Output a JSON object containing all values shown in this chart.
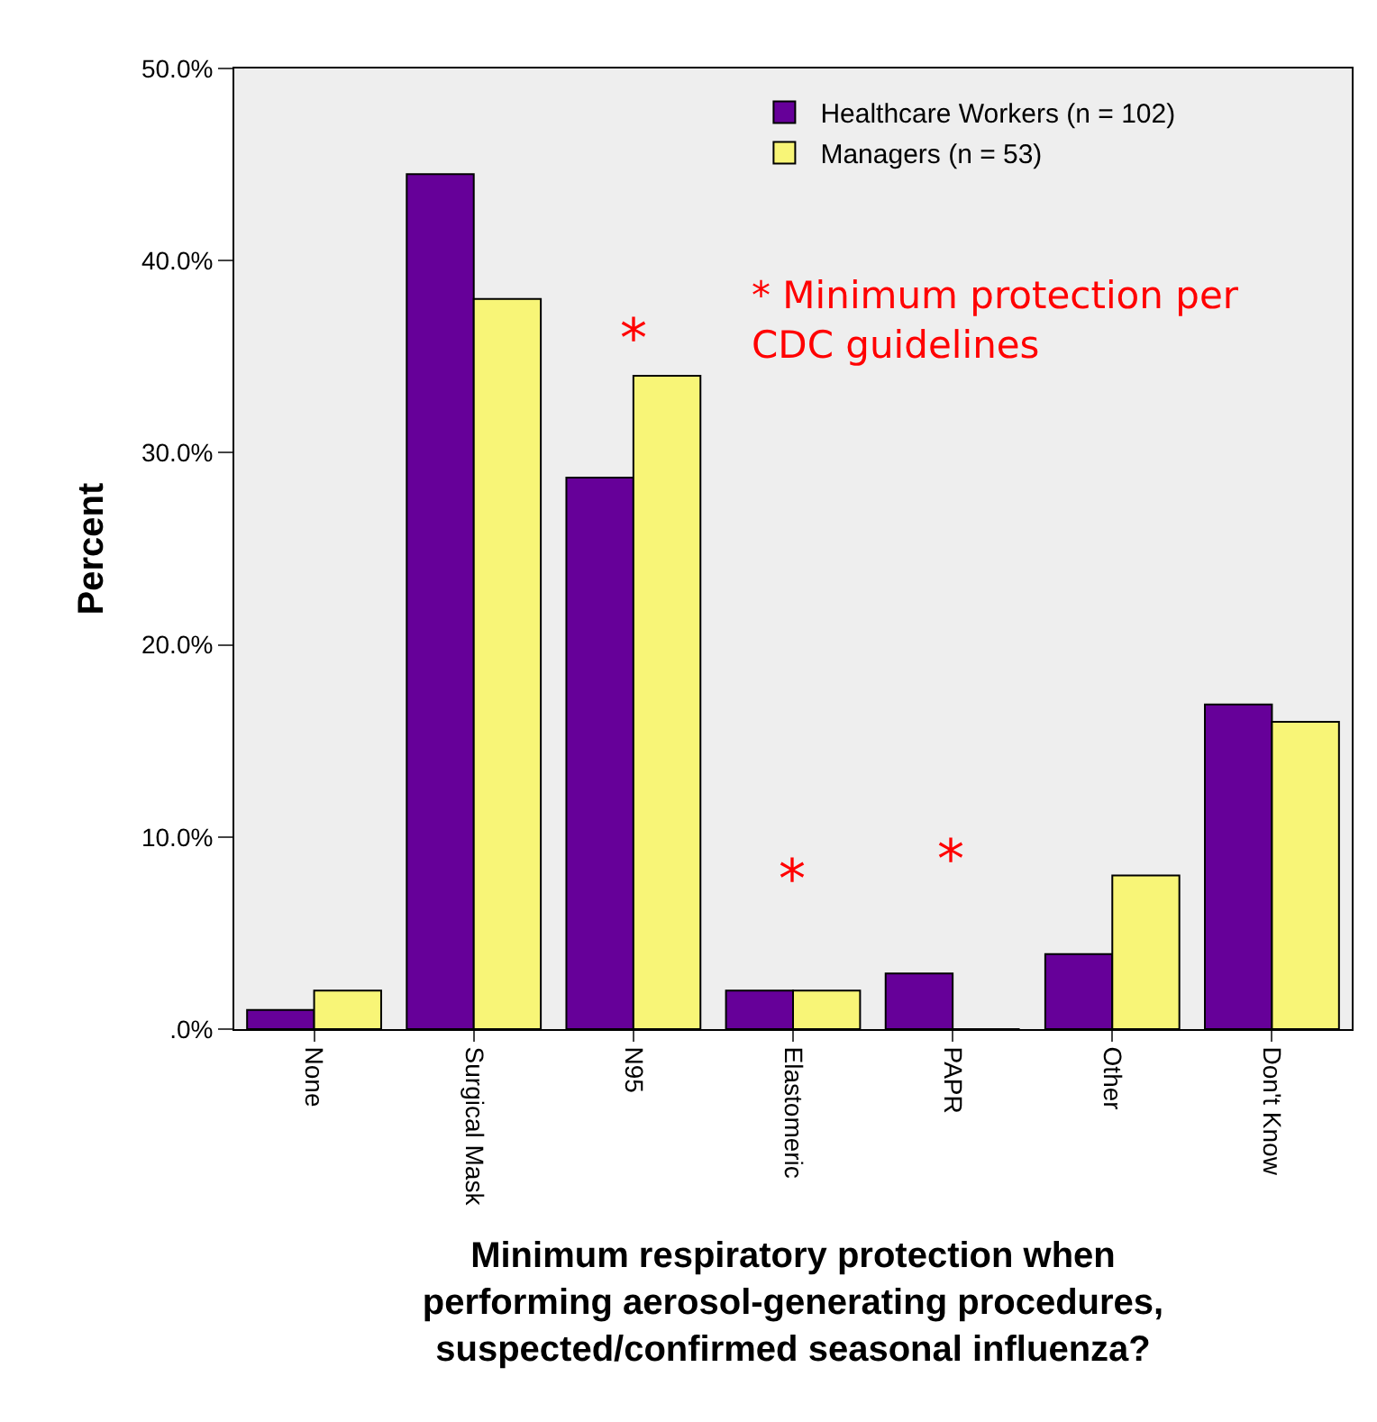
{
  "chart_data": {
    "type": "bar",
    "xlabel": "Minimum respiratory protection when\nperforming aerosol-generating procedures,\nsuspected/confirmed seasonal influenza?",
    "ylabel": "Percent",
    "categories": [
      "None",
      "Surgical Mask",
      "N95",
      "Elastomeric",
      "PAPR",
      "Other",
      "Don't Know"
    ],
    "series": [
      {
        "name": "Healthcare Workers (n = 102)",
        "color": "#660099",
        "values": [
          1.0,
          44.5,
          28.7,
          2.0,
          2.9,
          3.9,
          16.9
        ]
      },
      {
        "name": "Managers (n = 53)",
        "color": "#f8f577",
        "values": [
          2.0,
          38.0,
          34.0,
          2.0,
          0,
          8.0,
          16.0
        ]
      }
    ],
    "ylim": [
      0,
      50
    ],
    "yticks": [
      {
        "value": 0,
        "label": ".0%"
      },
      {
        "value": 10,
        "label": "10.0%"
      },
      {
        "value": 20,
        "label": "20.0%"
      },
      {
        "value": 30,
        "label": "30.0%"
      },
      {
        "value": 40,
        "label": "40.0%"
      },
      {
        "value": 50,
        "label": "50.0%"
      }
    ],
    "grid": false,
    "legend": "top right",
    "annotations": [
      "*",
      "*",
      "*",
      "* Minimum protection per\nCDC guidelines"
    ]
  }
}
